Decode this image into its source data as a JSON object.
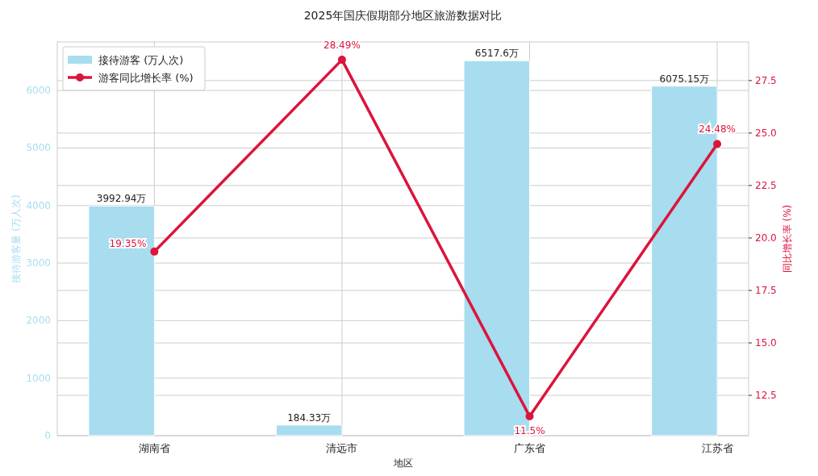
{
  "chart_data": {
    "type": "bar",
    "title": "2025年国庆假期部分地区旅游数据对比",
    "xlabel": "地区",
    "ylabel": "接待游客量 (万人次)",
    "y2label": "同比增长率 (%)",
    "categories": [
      "湖南省",
      "清远市",
      "广东省",
      "江苏省"
    ],
    "series": [
      {
        "name": "接待游客 (万人次)",
        "color": "#a8dcef",
        "values": [
          3992.94,
          184.33,
          6517.6,
          6075.15
        ],
        "value_labels": [
          "3992.94万",
          "184.33万",
          "6517.6万",
          "6075.15万"
        ]
      },
      {
        "name": "游客同比增长率 (%)",
        "type": "line",
        "axis": "y2",
        "color": "#dc143c",
        "values": [
          19.35,
          28.49,
          11.5,
          24.48
        ],
        "value_labels": [
          "19.35%",
          "28.49%",
          "11.5%",
          "24.48%"
        ]
      }
    ],
    "ylim": [
      0,
      6843.5
    ],
    "yticks": [
      0,
      1000,
      2000,
      3000,
      4000,
      5000,
      6000
    ],
    "y2lim": [
      10.58,
      29.34
    ],
    "y2ticks": [
      {
        "value": 12.5,
        "label": "12.5"
      },
      {
        "value": 15,
        "label": "15.0"
      },
      {
        "value": 17.5,
        "label": "17.5"
      },
      {
        "value": 20,
        "label": "20.0"
      },
      {
        "value": 22.5,
        "label": "22.5"
      },
      {
        "value": 25,
        "label": "25.0"
      },
      {
        "value": 27.5,
        "label": "27.5"
      }
    ],
    "grid": true,
    "legend": "top left",
    "marker": "circle"
  }
}
